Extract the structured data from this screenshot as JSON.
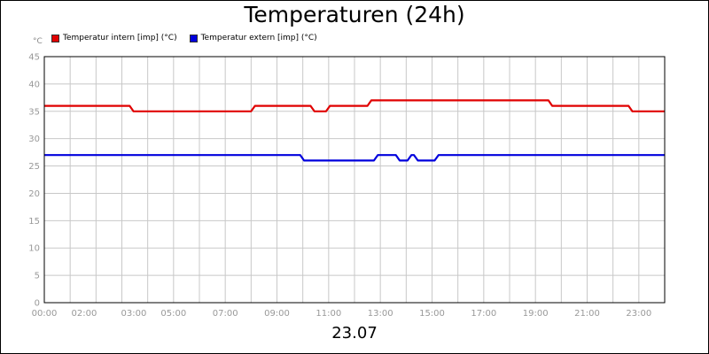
{
  "chart_data": {
    "type": "line",
    "title": "Temperaturen (24h)",
    "date_label": "23.07",
    "y_unit": "°C",
    "ylim": [
      0,
      45
    ],
    "yticks": [
      0,
      5,
      10,
      15,
      20,
      25,
      30,
      35,
      40,
      45
    ],
    "xlim": [
      0,
      24
    ],
    "xtick_positions": [
      0,
      2,
      3,
      5,
      7,
      9,
      11,
      13,
      15,
      17,
      19,
      21,
      23
    ],
    "xtick_labels": [
      "00:00",
      "02:00",
      "03:00",
      "05:00",
      "07:00",
      "09:00",
      "11:00",
      "13:00",
      "15:00",
      "17:00",
      "19:00",
      "21:00",
      "23:00"
    ],
    "grid": true,
    "legend_position": "top-left",
    "series": [
      {
        "name": "Temperatur intern [imp] (°C)",
        "color": "#e00000",
        "x": [
          0,
          3.3,
          3.45,
          8.0,
          8.15,
          10.3,
          10.45,
          10.9,
          11.05,
          12.5,
          12.65,
          19.5,
          19.65,
          22.6,
          22.75,
          24
        ],
        "y": [
          36,
          36,
          35,
          35,
          36,
          36,
          35,
          35,
          36,
          36,
          37,
          37,
          36,
          36,
          35,
          35
        ]
      },
      {
        "name": "Temperatur extern [imp] (°C)",
        "color": "#0000dd",
        "x": [
          0,
          9.9,
          10.05,
          12.75,
          12.9,
          13.6,
          13.75,
          14.05,
          14.2,
          14.3,
          14.45,
          15.1,
          15.25,
          24
        ],
        "y": [
          27,
          27,
          26,
          26,
          27,
          27,
          26,
          26,
          27,
          27,
          26,
          26,
          27,
          27
        ]
      }
    ]
  }
}
